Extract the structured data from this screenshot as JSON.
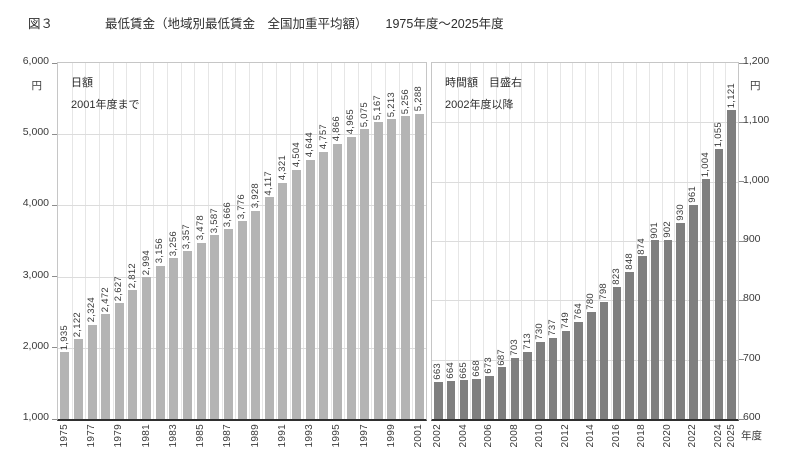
{
  "title": {
    "figure_label": "図３",
    "text": "最低賃金（地域別最低賃金　全国加重平均額）",
    "period": "1975年度～2025年度"
  },
  "axis": {
    "x_unit": "年度"
  },
  "chart_data": [
    {
      "type": "bar",
      "title": "日額",
      "subtitle": "2001年度まで",
      "unit": "円",
      "axis_side": "left",
      "bar_color": "#b4b4b4",
      "ylim": [
        1000,
        6000
      ],
      "yticks": [
        1000,
        2000,
        3000,
        4000,
        5000,
        6000
      ],
      "years": [
        1975,
        1976,
        1977,
        1978,
        1979,
        1980,
        1981,
        1982,
        1983,
        1984,
        1985,
        1986,
        1987,
        1988,
        1989,
        1990,
        1991,
        1992,
        1993,
        1994,
        1995,
        1996,
        1997,
        1998,
        1999,
        2000,
        2001
      ],
      "values": [
        1935,
        2122,
        2324,
        2472,
        2627,
        2812,
        2994,
        3156,
        3256,
        3357,
        3478,
        3587,
        3666,
        3776,
        3928,
        4117,
        4321,
        4504,
        4644,
        4757,
        4866,
        4965,
        5075,
        5167,
        5213,
        5256,
        5288
      ],
      "xtick_years": [
        1975,
        1977,
        1979,
        1981,
        1983,
        1985,
        1987,
        1989,
        1991,
        1993,
        1995,
        1997,
        1999,
        2001
      ]
    },
    {
      "type": "bar",
      "title": "時間額　目盛右",
      "subtitle": "2002年度以降",
      "unit": "円",
      "axis_side": "right",
      "bar_color": "#7f7f7f",
      "ylim": [
        600,
        1200
      ],
      "yticks": [
        600,
        700,
        800,
        900,
        1000,
        1100,
        1200
      ],
      "years": [
        2002,
        2003,
        2004,
        2005,
        2006,
        2007,
        2008,
        2009,
        2010,
        2011,
        2012,
        2013,
        2014,
        2015,
        2016,
        2017,
        2018,
        2019,
        2020,
        2021,
        2022,
        2023,
        2024,
        2025
      ],
      "values": [
        663,
        664,
        665,
        668,
        673,
        687,
        703,
        713,
        730,
        737,
        749,
        764,
        780,
        798,
        823,
        848,
        874,
        901,
        902,
        930,
        961,
        1004,
        1055,
        1121
      ],
      "xtick_years": [
        2002,
        2004,
        2006,
        2008,
        2010,
        2012,
        2014,
        2016,
        2018,
        2020,
        2022,
        2024,
        2025
      ]
    }
  ]
}
